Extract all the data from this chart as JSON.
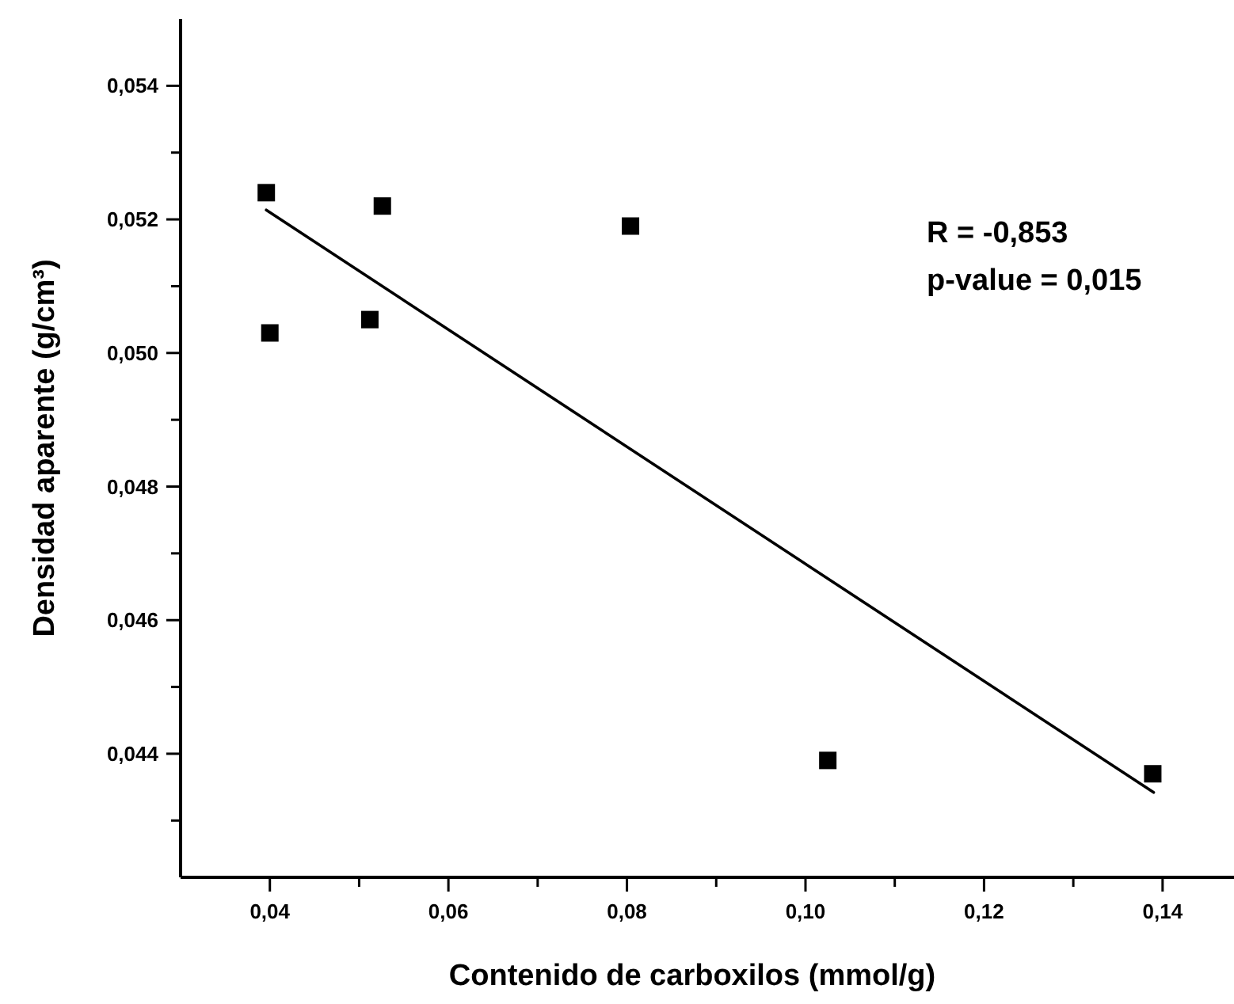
{
  "chart_data": {
    "type": "scatter",
    "xlabel": "Contenido de carboxilos (mmol/g)",
    "ylabel": "Densidad aparente (g/cm³)",
    "xlim": [
      0.03,
      0.148
    ],
    "ylim": [
      0.04215,
      0.055
    ],
    "xticks": [
      {
        "value": 0.04,
        "label": "0,04"
      },
      {
        "value": 0.05,
        "label": null
      },
      {
        "value": 0.06,
        "label": "0,06"
      },
      {
        "value": 0.07,
        "label": null
      },
      {
        "value": 0.08,
        "label": "0,08"
      },
      {
        "value": 0.09,
        "label": null
      },
      {
        "value": 0.1,
        "label": "0,10"
      },
      {
        "value": 0.11,
        "label": null
      },
      {
        "value": 0.12,
        "label": "0,12"
      },
      {
        "value": 0.13,
        "label": null
      },
      {
        "value": 0.14,
        "label": "0,14"
      }
    ],
    "yticks": [
      {
        "value": 0.043,
        "label": null
      },
      {
        "value": 0.044,
        "label": "0,044"
      },
      {
        "value": 0.045,
        "label": null
      },
      {
        "value": 0.046,
        "label": "0,046"
      },
      {
        "value": 0.047,
        "label": null
      },
      {
        "value": 0.048,
        "label": "0,048"
      },
      {
        "value": 0.049,
        "label": null
      },
      {
        "value": 0.05,
        "label": "0,050"
      },
      {
        "value": 0.051,
        "label": null
      },
      {
        "value": 0.052,
        "label": "0,052"
      },
      {
        "value": 0.053,
        "label": null
      },
      {
        "value": 0.054,
        "label": "0,054"
      }
    ],
    "grid": false,
    "marker": "square",
    "series": [
      {
        "color": "#000000",
        "x": [
          0.0396,
          0.0526,
          0.04,
          0.0512,
          0.0804,
          0.1025,
          0.1389
        ],
        "values": [
          0.0524,
          0.0522,
          0.0503,
          0.0505,
          0.0519,
          0.0439,
          0.0437
        ]
      },
      {
        "type": "line",
        "color": "#000000",
        "marker": "none",
        "x": [
          0.0396,
          0.139
        ],
        "values": [
          0.05214,
          0.04342
        ]
      }
    ],
    "annotations": [
      "R = -0,853",
      "p-value = 0,015"
    ]
  }
}
